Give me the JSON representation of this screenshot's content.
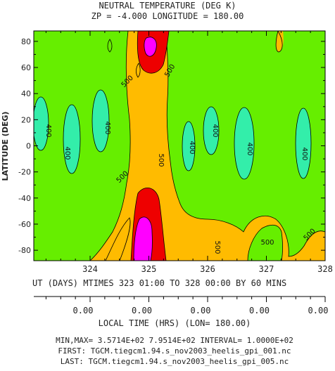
{
  "title": {
    "line1": "NEUTRAL TEMPERATURE (DEG K)",
    "line2": "ZP =    -4.000 LONGITUDE =   180.00"
  },
  "colors": {
    "level_300_400": "#66ee00",
    "level_400_below": "#33eeaa",
    "level_500_600": "#ffbb00",
    "level_600_700": "#ee0000",
    "level_700_800": "#ff00ff",
    "line": "#000000"
  },
  "chart_data": {
    "type": "heatmap",
    "title": "NEUTRAL TEMPERATURE (DEG K)",
    "subtitle": "ZP =    -4.000 LONGITUDE =   180.00",
    "ylabel": "LATITUDE (DEG)",
    "xlabel": "UT (DAYS) MTIMES 323 01:00 TO 328 00:00 BY    60 MINS",
    "xlim": [
      323.0417,
      328.0
    ],
    "ylim": [
      -88,
      88
    ],
    "x_ticks": [
      "324",
      "325",
      "326",
      "327",
      "328"
    ],
    "y_ticks": [
      "80",
      "60",
      "40",
      "20",
      "0",
      "-20",
      "-40",
      "-60",
      "-80"
    ],
    "contour_levels": [
      400,
      500,
      600,
      700
    ],
    "contour_labels": [
      "400",
      "400",
      "400",
      "400",
      "400",
      "400",
      "400",
      "500",
      "500",
      "500",
      "500",
      "500",
      "500",
      "500"
    ],
    "regions": [
      {
        "name": "below-400",
        "center_ut": 323.2,
        "center_lat": 12,
        "min_lat": -10,
        "max_lat": 38
      },
      {
        "name": "below-400",
        "center_ut": 323.6,
        "center_lat": 0,
        "min_lat": -36,
        "max_lat": 32
      },
      {
        "name": "below-400",
        "center_ut": 324.1,
        "center_lat": 12,
        "min_lat": -15,
        "max_lat": 40
      },
      {
        "name": "below-400",
        "center_ut": 326.15,
        "center_lat": 0,
        "min_lat": -22,
        "max_lat": 20
      },
      {
        "name": "below-400",
        "center_ut": 326.55,
        "center_lat": 10,
        "min_lat": -25,
        "max_lat": 28
      },
      {
        "name": "below-400",
        "center_ut": 327.05,
        "center_lat": 0,
        "min_lat": -36,
        "max_lat": 30
      },
      {
        "name": "below-400",
        "center_ut": 327.75,
        "center_lat": 0,
        "min_lat": -34,
        "max_lat": 28
      },
      {
        "name": "above-700",
        "center_ut": 324.85,
        "center_lat": -75,
        "min_lat": -88,
        "max_lat": -60
      },
      {
        "name": "above-700",
        "center_ut": 324.95,
        "center_lat": 72,
        "min_lat": 62,
        "max_lat": 84
      }
    ],
    "min": 357.14,
    "max": 795.14,
    "interval": 100.0
  },
  "local_time": {
    "values": [
      "0.00",
      "0.00",
      "0.00",
      "0.00",
      "0.00"
    ],
    "label": "LOCAL TIME (HRS) (LON= 180.00)"
  },
  "footer": {
    "minmax": "MIN,MAX=  3.5714E+02  7.9514E+02 INTERVAL=  1.0000E+02",
    "first": "FIRST: TGCM.tiegcm1.94.s_nov2003_heelis_gpi_001.nc",
    "last": "LAST:  TGCM.tiegcm1.94.s_nov2003_heelis_gpi_005.nc"
  }
}
